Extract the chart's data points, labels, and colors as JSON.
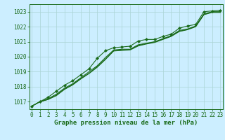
{
  "title": "Graphe pression niveau de la mer (hPa)",
  "x": [
    0,
    1,
    2,
    3,
    4,
    5,
    6,
    7,
    8,
    9,
    10,
    11,
    12,
    13,
    14,
    15,
    16,
    17,
    18,
    19,
    20,
    21,
    22,
    23
  ],
  "line1": [
    1016.7,
    1017.0,
    1017.3,
    1017.7,
    1018.1,
    1018.4,
    1018.8,
    1019.2,
    1019.9,
    1020.4,
    1020.6,
    1020.65,
    1020.7,
    1021.05,
    1021.15,
    1021.15,
    1021.35,
    1021.5,
    1021.9,
    1022.05,
    1022.15,
    1023.0,
    1023.05,
    1023.1
  ],
  "line2": [
    1016.7,
    1017.0,
    1017.2,
    1017.5,
    1017.9,
    1018.2,
    1018.6,
    1019.0,
    1019.4,
    1019.95,
    1020.45,
    1020.5,
    1020.5,
    1020.8,
    1020.9,
    1021.0,
    1021.2,
    1021.4,
    1021.75,
    1021.85,
    1022.05,
    1022.85,
    1023.0,
    1023.0
  ],
  "line3": [
    1016.7,
    1017.0,
    1017.15,
    1017.45,
    1017.85,
    1018.15,
    1018.55,
    1018.9,
    1019.35,
    1019.85,
    1020.4,
    1020.45,
    1020.48,
    1020.75,
    1020.88,
    1020.98,
    1021.18,
    1021.38,
    1021.7,
    1021.82,
    1022.02,
    1022.82,
    1022.98,
    1022.98
  ],
  "line4": [
    1016.7,
    1017.0,
    1017.15,
    1017.4,
    1017.82,
    1018.12,
    1018.52,
    1018.88,
    1019.3,
    1019.82,
    1020.38,
    1020.42,
    1020.45,
    1020.72,
    1020.85,
    1020.95,
    1021.15,
    1021.35,
    1021.68,
    1021.8,
    1022.0,
    1022.8,
    1022.95,
    1022.95
  ],
  "ylim": [
    1016.5,
    1023.5
  ],
  "yticks": [
    1017,
    1018,
    1019,
    1020,
    1021,
    1022,
    1023
  ],
  "xlim": [
    -0.3,
    23.3
  ],
  "line_color": "#1a6b1a",
  "marker_color": "#1a6b1a",
  "bg_color": "#cceeff",
  "grid_color": "#aad4d4",
  "text_color": "#1a6b1a",
  "title_fontsize": 6.5,
  "tick_fontsize": 5.5
}
